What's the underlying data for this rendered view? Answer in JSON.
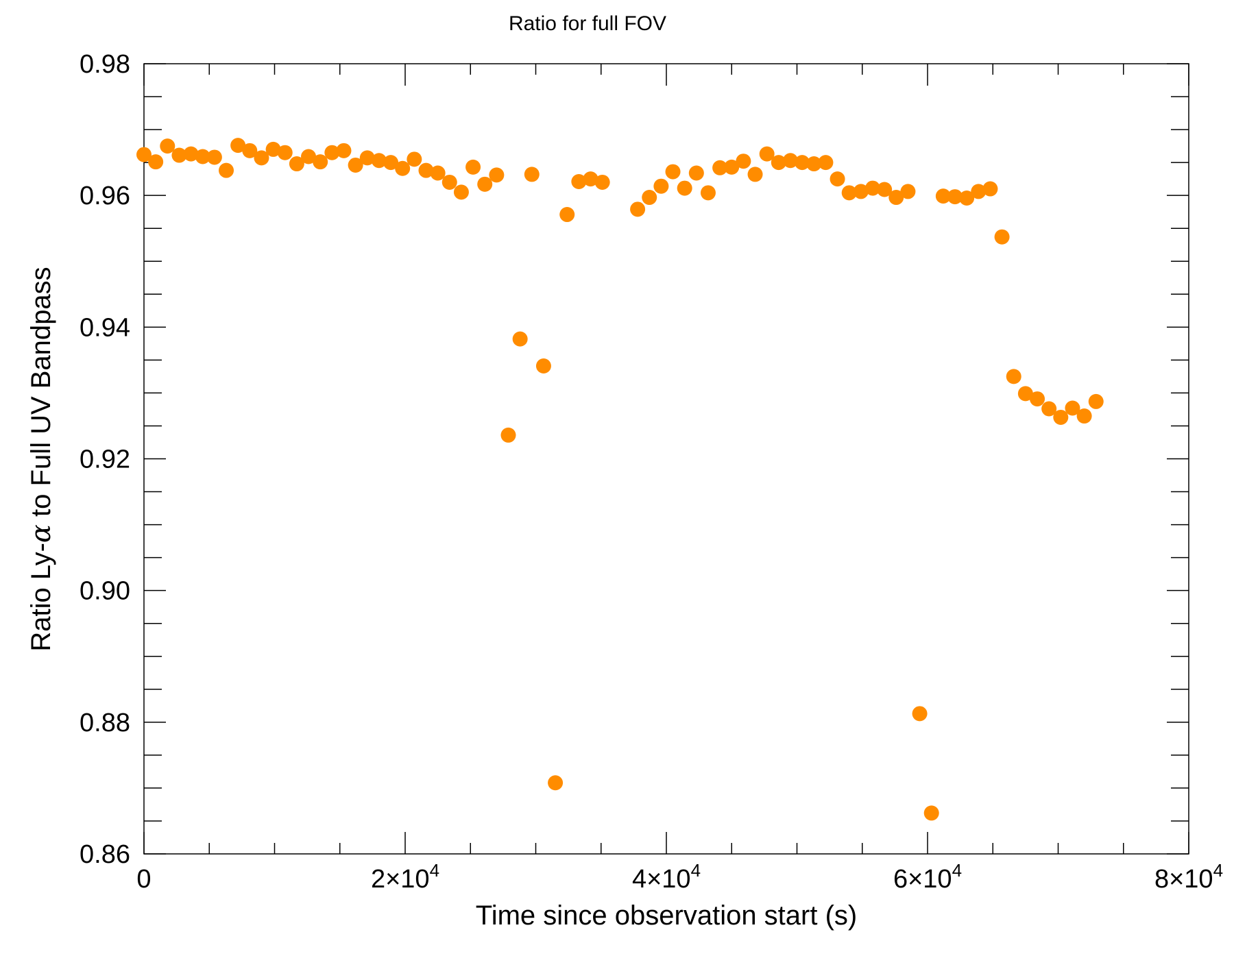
{
  "chart_data": {
    "type": "scatter",
    "title": "Ratio for full FOV",
    "xlabel": "Time since observation start (s)",
    "ylabel_prefix": "Ratio Ly-",
    "ylabel_symbol": "α",
    "ylabel_suffix": " to Full UV Bandpass",
    "xlim": [
      0,
      80000
    ],
    "ylim": [
      0.86,
      0.98
    ],
    "x_ticks": [
      {
        "value": 0,
        "mantissa": "0",
        "exponent": ""
      },
      {
        "value": 20000,
        "mantissa": "2×10",
        "exponent": "4"
      },
      {
        "value": 40000,
        "mantissa": "4×10",
        "exponent": "4"
      },
      {
        "value": 60000,
        "mantissa": "6×10",
        "exponent": "4"
      },
      {
        "value": 80000,
        "mantissa": "8×10",
        "exponent": "4"
      }
    ],
    "y_ticks": [
      {
        "value": 0.86,
        "label": "0.86"
      },
      {
        "value": 0.88,
        "label": "0.88"
      },
      {
        "value": 0.9,
        "label": "0.90"
      },
      {
        "value": 0.92,
        "label": "0.92"
      },
      {
        "value": 0.94,
        "label": "0.94"
      },
      {
        "value": 0.96,
        "label": "0.96"
      },
      {
        "value": 0.98,
        "label": "0.98"
      }
    ],
    "marker_color": "#ff8c00",
    "series": [
      {
        "name": "ratio",
        "points": [
          [
            0,
            0.9662
          ],
          [
            900,
            0.9651
          ],
          [
            1800,
            0.9675
          ],
          [
            2700,
            0.9661
          ],
          [
            3600,
            0.9663
          ],
          [
            4500,
            0.9659
          ],
          [
            5400,
            0.9658
          ],
          [
            6300,
            0.9638
          ],
          [
            7200,
            0.9676
          ],
          [
            8100,
            0.9668
          ],
          [
            9000,
            0.9657
          ],
          [
            9900,
            0.967
          ],
          [
            10800,
            0.9665
          ],
          [
            11700,
            0.9648
          ],
          [
            12600,
            0.9659
          ],
          [
            13500,
            0.9651
          ],
          [
            14400,
            0.9665
          ],
          [
            15300,
            0.9668
          ],
          [
            16200,
            0.9646
          ],
          [
            17100,
            0.9657
          ],
          [
            18000,
            0.9653
          ],
          [
            18900,
            0.965
          ],
          [
            19800,
            0.9641
          ],
          [
            20700,
            0.9655
          ],
          [
            21600,
            0.9638
          ],
          [
            22500,
            0.9634
          ],
          [
            23400,
            0.962
          ],
          [
            24300,
            0.9605
          ],
          [
            25200,
            0.9643
          ],
          [
            26100,
            0.9617
          ],
          [
            27000,
            0.9631
          ],
          [
            27900,
            0.9236
          ],
          [
            28800,
            0.9382
          ],
          [
            29700,
            0.9632
          ],
          [
            30600,
            0.9341
          ],
          [
            31500,
            0.8708
          ],
          [
            32400,
            0.9571
          ],
          [
            33300,
            0.9621
          ],
          [
            34200,
            0.9625
          ],
          [
            35100,
            0.962
          ],
          [
            37800,
            0.9579
          ],
          [
            38700,
            0.9597
          ],
          [
            39600,
            0.9614
          ],
          [
            40500,
            0.9636
          ],
          [
            41400,
            0.9611
          ],
          [
            42300,
            0.9634
          ],
          [
            43200,
            0.9604
          ],
          [
            44100,
            0.9642
          ],
          [
            45000,
            0.9643
          ],
          [
            45900,
            0.9652
          ],
          [
            46800,
            0.9632
          ],
          [
            47700,
            0.9663
          ],
          [
            48600,
            0.965
          ],
          [
            49500,
            0.9653
          ],
          [
            50400,
            0.965
          ],
          [
            51300,
            0.9648
          ],
          [
            52200,
            0.965
          ],
          [
            53100,
            0.9625
          ],
          [
            54000,
            0.9604
          ],
          [
            54900,
            0.9606
          ],
          [
            55800,
            0.9611
          ],
          [
            56700,
            0.9609
          ],
          [
            57600,
            0.9597
          ],
          [
            58500,
            0.9606
          ],
          [
            59400,
            0.8813
          ],
          [
            60300,
            0.8662
          ],
          [
            61200,
            0.9599
          ],
          [
            62100,
            0.9598
          ],
          [
            63000,
            0.9596
          ],
          [
            63900,
            0.9606
          ],
          [
            64800,
            0.961
          ],
          [
            65700,
            0.9537
          ],
          [
            66600,
            0.9325
          ],
          [
            67500,
            0.9299
          ],
          [
            68400,
            0.9291
          ],
          [
            69300,
            0.9276
          ],
          [
            70200,
            0.9263
          ],
          [
            71100,
            0.9277
          ],
          [
            72000,
            0.9265
          ],
          [
            72900,
            0.9287
          ]
        ]
      }
    ]
  }
}
